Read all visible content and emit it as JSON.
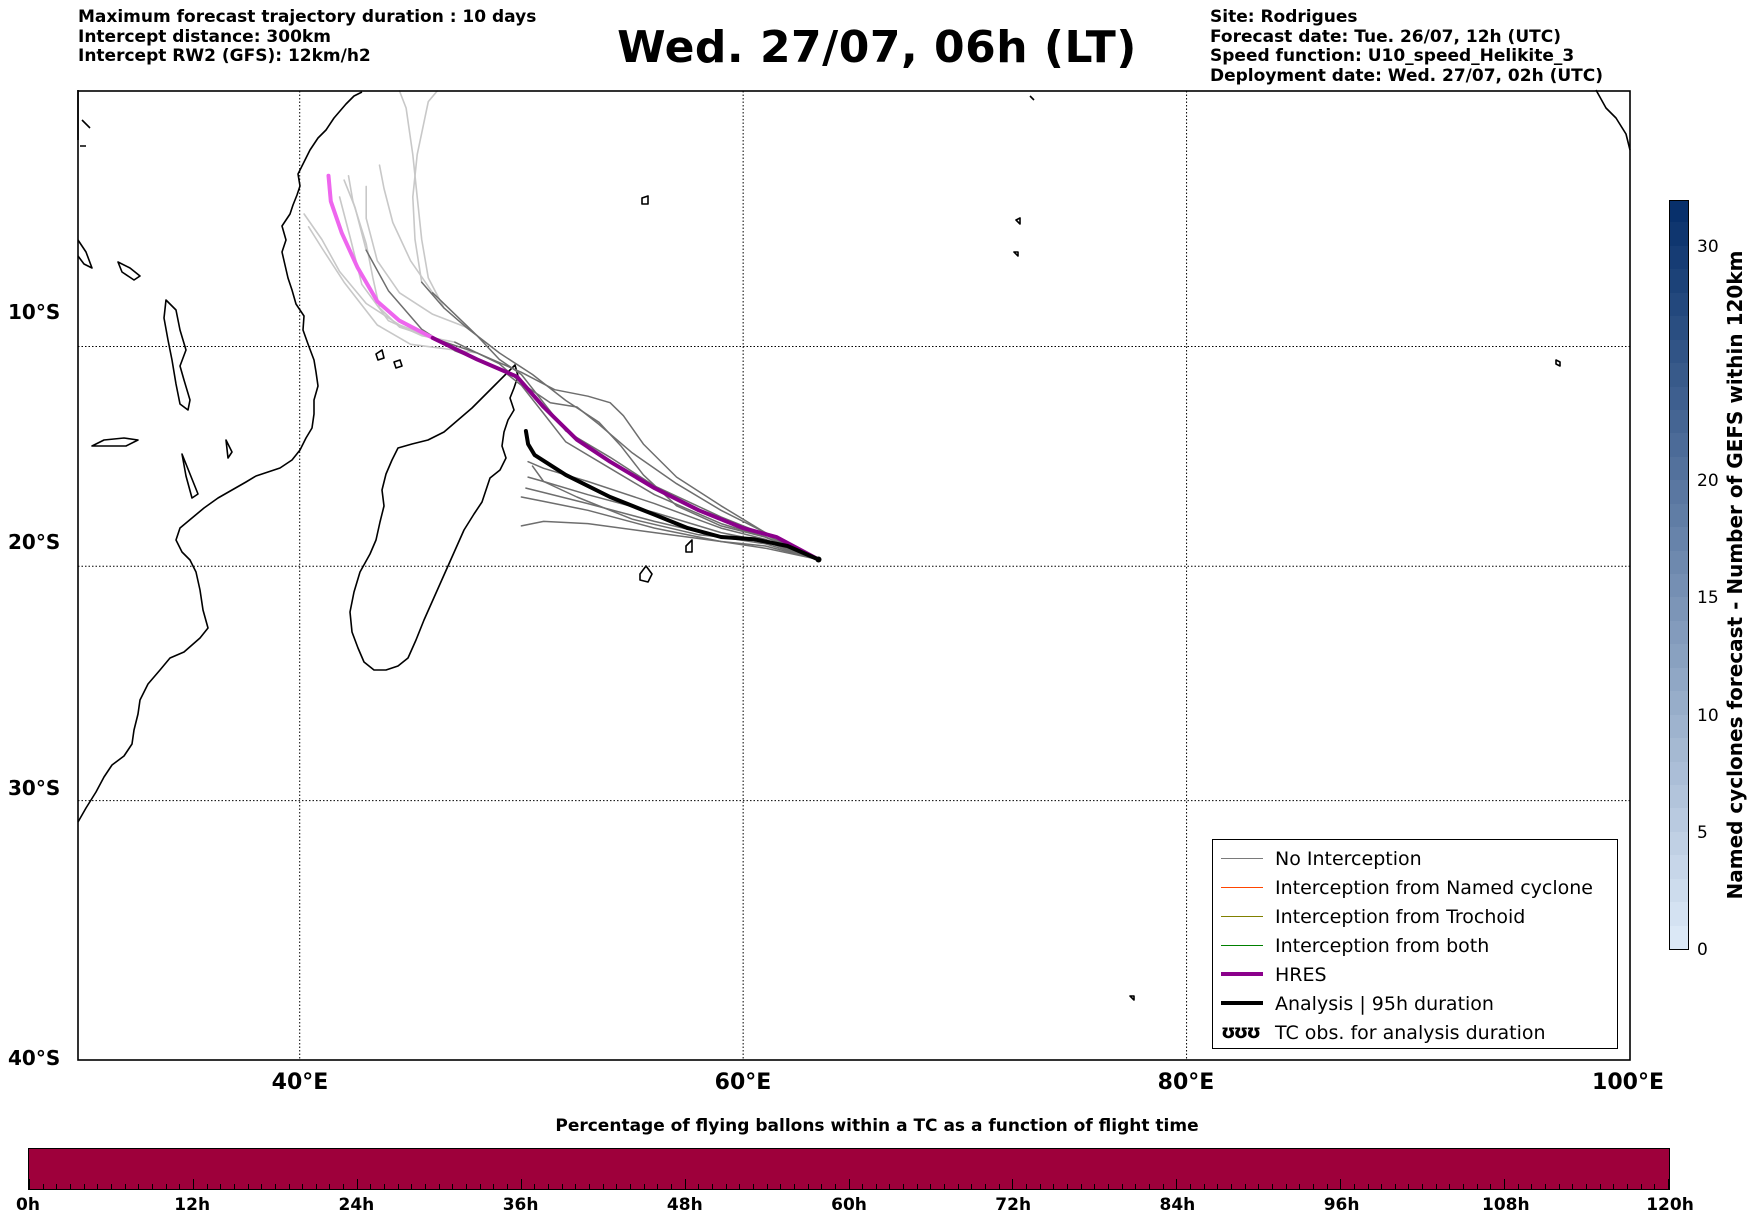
{
  "header": {
    "left_lines": [
      "Maximum forecast trajectory duration : 10 days",
      "Intercept distance: 300km",
      "Intercept RW2 (GFS):  12km/h2"
    ],
    "title": "Wed. 27/07, 06h (LT)",
    "right_lines": [
      "Site: Rodrigues",
      "Forecast date: Tue. 26/07, 12h (UTC)",
      "Speed function: U10_speed_Helikite_3",
      "Deployment date: Wed. 27/07, 02h (UTC)"
    ]
  },
  "map": {
    "lon_range": [
      30,
      100
    ],
    "lat_range": [
      -40,
      2
    ],
    "lat_labels": [
      {
        "lat": -10,
        "text": "10°S"
      },
      {
        "lat": -20,
        "text": "20°S"
      },
      {
        "lat": -30,
        "text": "30°S"
      },
      {
        "lat": -40,
        "text": "40°S"
      }
    ],
    "lon_labels": [
      {
        "lon": 40,
        "text": "40°E"
      },
      {
        "lon": 60,
        "text": "60°E"
      },
      {
        "lon": 80,
        "text": "80°E"
      },
      {
        "lon": 100,
        "text": "100°E"
      }
    ],
    "release_site": {
      "lon": 63.4,
      "lat": -19.7
    },
    "colors": {
      "no_interception": "#6e6e6e",
      "late_members": "#c8c8c8",
      "hres": "#8b008b",
      "hres_late": "#ee66ee",
      "analysis": "#000000",
      "coast": "#000000"
    }
  },
  "trajectories": {
    "hres": [
      [
        63.4,
        -19.7
      ],
      [
        61.5,
        -18.7
      ],
      [
        60,
        -18.3
      ],
      [
        58,
        -17.5
      ],
      [
        56,
        -16.5
      ],
      [
        54,
        -15.3
      ],
      [
        52.5,
        -14.3
      ],
      [
        51,
        -12.8
      ],
      [
        49.8,
        -11.4
      ],
      [
        48,
        -10.6
      ],
      [
        46,
        -9.6
      ]
    ],
    "hres_late": [
      [
        46,
        -9.6
      ],
      [
        44.5,
        -8.8
      ],
      [
        43.5,
        -7.9
      ],
      [
        42.6,
        -6.3
      ],
      [
        41.9,
        -4.7
      ],
      [
        41.4,
        -3.2
      ],
      [
        41.3,
        -2.0
      ]
    ],
    "analysis": [
      [
        63.4,
        -19.7
      ],
      [
        62,
        -19.1
      ],
      [
        60.5,
        -18.8
      ],
      [
        59,
        -18.7
      ],
      [
        57.5,
        -18.3
      ],
      [
        56,
        -17.7
      ],
      [
        54,
        -16.9
      ],
      [
        52,
        -15.9
      ],
      [
        50.6,
        -15.0
      ],
      [
        50.3,
        -14.5
      ],
      [
        50.2,
        -13.9
      ]
    ],
    "members": [
      [
        [
          63.4,
          -19.7
        ],
        [
          61,
          -19.1
        ],
        [
          59,
          -18.9
        ],
        [
          56,
          -18.5
        ],
        [
          53,
          -18.1
        ],
        [
          51,
          -18
        ],
        [
          50,
          -18.2
        ]
      ],
      [
        [
          63.4,
          -19.7
        ],
        [
          61,
          -19.2
        ],
        [
          59,
          -18.9
        ],
        [
          56,
          -18.3
        ],
        [
          53,
          -17.5
        ],
        [
          51,
          -17.1
        ],
        [
          50,
          -16.9
        ]
      ],
      [
        [
          63.4,
          -19.7
        ],
        [
          61,
          -19
        ],
        [
          59,
          -18.7
        ],
        [
          56,
          -18
        ],
        [
          53,
          -17.2
        ],
        [
          51,
          -16.7
        ],
        [
          50.2,
          -16.5
        ]
      ],
      [
        [
          63.4,
          -19.7
        ],
        [
          61,
          -18.9
        ],
        [
          59,
          -18.5
        ],
        [
          56,
          -17.6
        ],
        [
          53,
          -16.8
        ],
        [
          51,
          -16.2
        ],
        [
          50.3,
          -16
        ]
      ],
      [
        [
          63.4,
          -19.7
        ],
        [
          61,
          -18.8
        ],
        [
          59,
          -18.3
        ],
        [
          56,
          -17.2
        ],
        [
          53,
          -16.2
        ],
        [
          51,
          -15.6
        ],
        [
          50.3,
          -15.3
        ]
      ],
      [
        [
          63.4,
          -19.7
        ],
        [
          61,
          -18.7
        ],
        [
          59,
          -18.1
        ],
        [
          56,
          -16.8
        ],
        [
          54,
          -15.6
        ],
        [
          52,
          -14.4
        ],
        [
          51,
          -13.1
        ],
        [
          50,
          -11.8
        ],
        [
          49,
          -11
        ],
        [
          47,
          -10.2
        ],
        [
          45.5,
          -9.2
        ],
        [
          44,
          -7.4
        ],
        [
          43,
          -5.5
        ]
      ],
      [
        [
          63.4,
          -19.7
        ],
        [
          61,
          -18.6
        ],
        [
          59,
          -17.8
        ],
        [
          56,
          -16.4
        ],
        [
          54,
          -15.1
        ],
        [
          52,
          -13.9
        ],
        [
          51,
          -12.6
        ],
        [
          50,
          -11.3
        ],
        [
          49,
          -10.6
        ],
        [
          48,
          -9.5
        ],
        [
          46,
          -7.5
        ]
      ],
      [
        [
          63.4,
          -19.7
        ],
        [
          61,
          -18.5
        ],
        [
          59,
          -17.5
        ],
        [
          57,
          -16.3
        ],
        [
          55,
          -14.9
        ],
        [
          53.5,
          -13.6
        ],
        [
          52.5,
          -12.8
        ],
        [
          51.3,
          -12.6
        ],
        [
          50,
          -11.7
        ],
        [
          49,
          -10.8
        ],
        [
          47,
          -9.8
        ]
      ],
      [
        [
          63.4,
          -19.7
        ],
        [
          61,
          -18.5
        ],
        [
          59,
          -17.3
        ],
        [
          57,
          -16
        ],
        [
          55.5,
          -14.5
        ],
        [
          54.6,
          -13.2
        ],
        [
          54,
          -12.6
        ],
        [
          53,
          -12.3
        ],
        [
          51.5,
          -12
        ],
        [
          50,
          -11.2
        ],
        [
          48,
          -10.3
        ],
        [
          46,
          -9.6
        ]
      ],
      [
        [
          63.4,
          -19.7
        ],
        [
          61,
          -18.7
        ],
        [
          59,
          -18.2
        ],
        [
          57,
          -17.3
        ],
        [
          55.5,
          -15.9
        ],
        [
          54.5,
          -14.6
        ],
        [
          53.5,
          -13.5
        ],
        [
          52,
          -12.5
        ],
        [
          50.5,
          -11.3
        ],
        [
          49,
          -10.3
        ],
        [
          47.5,
          -9.1
        ],
        [
          46.5,
          -8.2
        ],
        [
          45.5,
          -7
        ]
      ],
      [
        [
          63.4,
          -19.7
        ],
        [
          61,
          -18.9
        ],
        [
          58,
          -18.6
        ],
        [
          55,
          -17.9
        ],
        [
          52.5,
          -16.9
        ],
        [
          51,
          -16.2
        ],
        [
          50.5,
          -15.5
        ]
      ]
    ],
    "late_members": [
      [
        [
          46,
          -9.6
        ],
        [
          44.5,
          -9
        ],
        [
          43,
          -8
        ],
        [
          41.8,
          -6.5
        ],
        [
          41,
          -5
        ],
        [
          40.2,
          -3.8
        ]
      ],
      [
        [
          46,
          -9.6
        ],
        [
          44.5,
          -9.1
        ],
        [
          43.6,
          -8.2
        ],
        [
          43.3,
          -6.8
        ],
        [
          43,
          -5.2
        ],
        [
          42.4,
          -3.2
        ],
        [
          42.2,
          -2
        ]
      ],
      [
        [
          47,
          -9.8
        ],
        [
          45.5,
          -9.5
        ],
        [
          44,
          -8.8
        ],
        [
          42.8,
          -7.1
        ],
        [
          42.3,
          -5
        ],
        [
          41.8,
          -3
        ]
      ],
      [
        [
          47.5,
          -9.1
        ],
        [
          46,
          -8.5
        ],
        [
          44.5,
          -7.5
        ],
        [
          43.5,
          -6
        ],
        [
          43,
          -4
        ],
        [
          43,
          -2.5
        ]
      ],
      [
        [
          46,
          -7.5
        ],
        [
          45,
          -6
        ],
        [
          44.2,
          -4.2
        ],
        [
          43.8,
          -2.6
        ],
        [
          43.6,
          -1.5
        ]
      ],
      [
        [
          45.5,
          -7
        ],
        [
          45.2,
          -5
        ],
        [
          45.1,
          -3
        ],
        [
          45.3,
          -1
        ],
        [
          45.8,
          1.5
        ],
        [
          46.2,
          2
        ]
      ],
      [
        [
          43,
          -5.5
        ],
        [
          42.5,
          -3.5
        ],
        [
          42,
          -2.2
        ]
      ],
      [
        [
          48,
          -10.3
        ],
        [
          46.5,
          -10.1
        ],
        [
          45,
          -9.9
        ],
        [
          43.5,
          -9
        ],
        [
          42,
          -7
        ],
        [
          41,
          -5.4
        ],
        [
          40.4,
          -4.4
        ]
      ],
      [
        [
          46.5,
          -8.2
        ],
        [
          45.8,
          -6.8
        ],
        [
          45.5,
          -5
        ],
        [
          45.3,
          -3
        ],
        [
          45.1,
          -1
        ],
        [
          44.8,
          1.2
        ],
        [
          44.5,
          2
        ]
      ]
    ]
  },
  "legend": {
    "items": [
      {
        "label": "No Interception",
        "color": "#7a7a7a",
        "width": 1.5
      },
      {
        "label": "Interception from Named cyclone",
        "color": "#ff4500",
        "width": 1.5
      },
      {
        "label": "Interception from Trochoid",
        "color": "#808000",
        "width": 1.5
      },
      {
        "label": "Interception from both",
        "color": "#008000",
        "width": 1.5
      },
      {
        "label": "HRES",
        "color": "#8b008b",
        "width": 4
      },
      {
        "label": "Analysis | 95h duration",
        "color": "#000000",
        "width": 4
      }
    ],
    "tc_glyph": "ʊʊʊ",
    "tc_label": "TC obs. for analysis duration"
  },
  "right_colorbar": {
    "title": "Named cyclones forecast - Number of GEFS within 120km",
    "range": [
      0,
      32
    ],
    "ticks": [
      "0",
      "5",
      "10",
      "15",
      "20",
      "30"
    ],
    "tick_values": [
      0,
      5,
      10,
      15,
      20,
      30
    ],
    "color_low": "#dbe8f6",
    "color_high": "#08306b"
  },
  "bottom_colorbar": {
    "title": "Percentage of flying ballons within a TC as a function of flight time",
    "fill_color": "#9e003b",
    "ticks": [
      "0h",
      "12h",
      "24h",
      "36h",
      "48h",
      "60h",
      "72h",
      "84h",
      "96h",
      "108h",
      "120h"
    ]
  }
}
